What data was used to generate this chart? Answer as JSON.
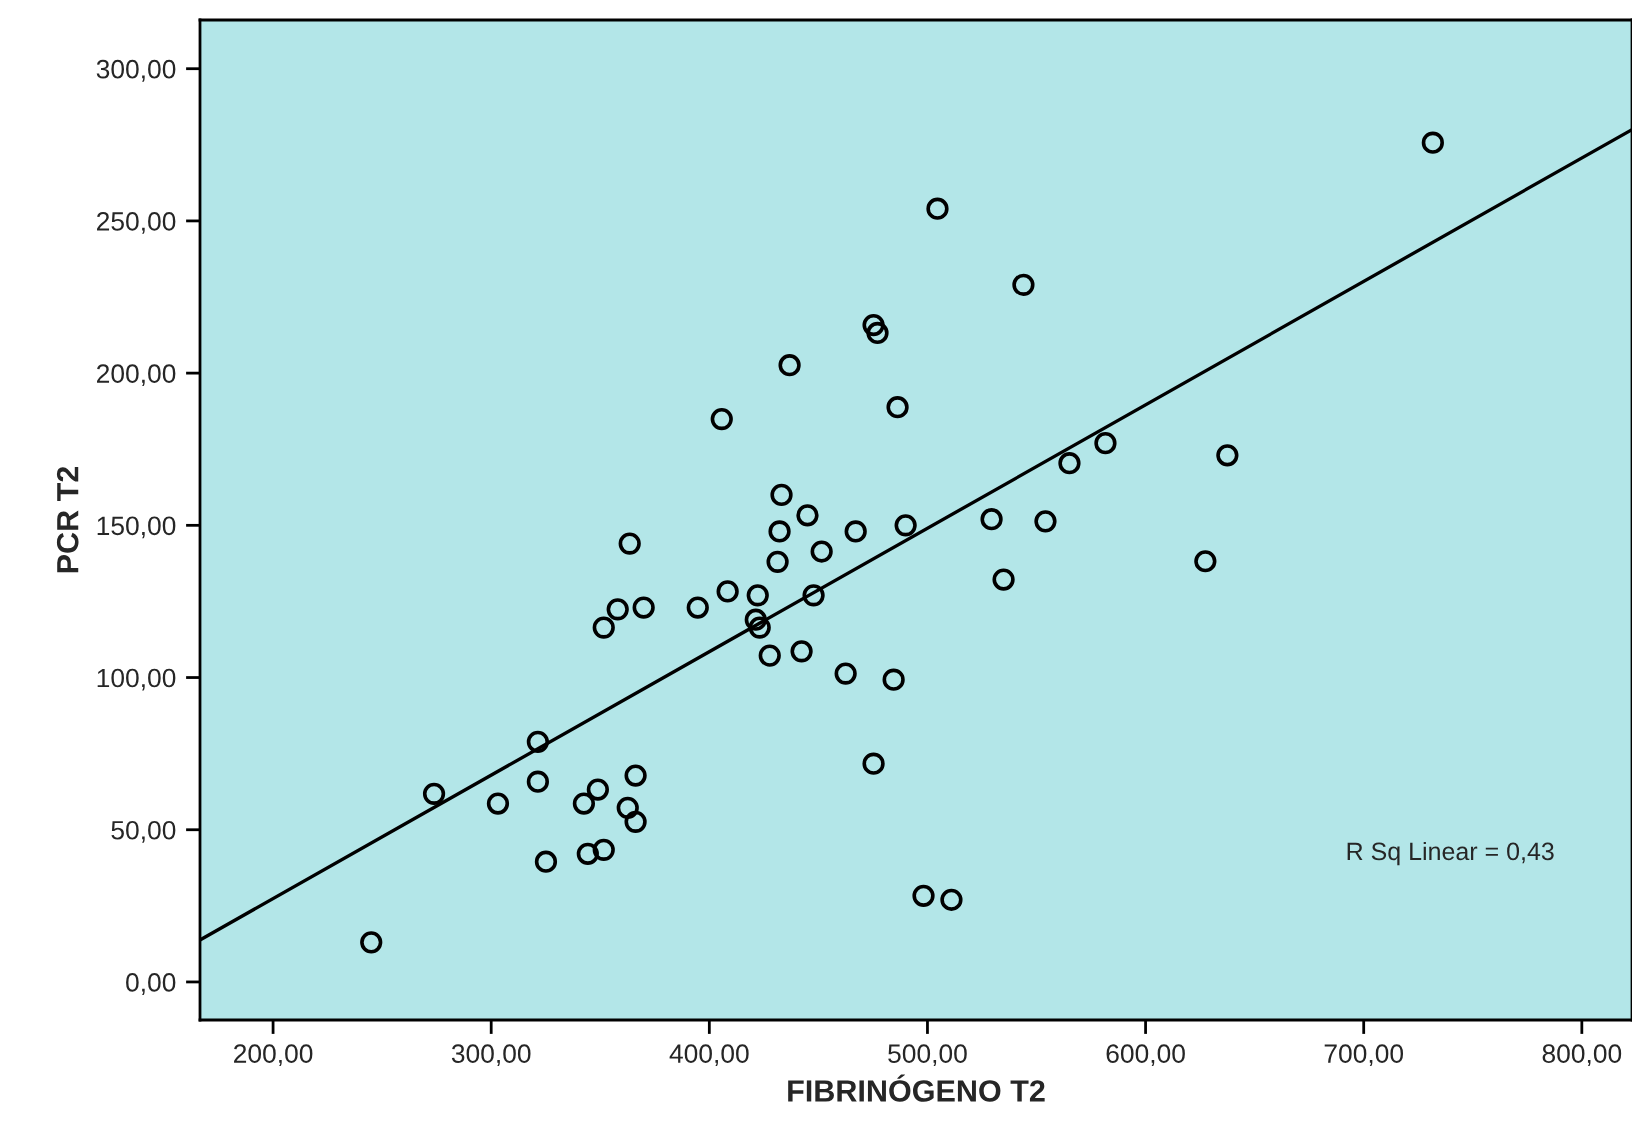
{
  "chart_data": {
    "type": "scatter",
    "xlabel": "FIBRINÓGENO T2",
    "ylabel": "PCR T2",
    "xlim": [
      166.5,
      823
    ],
    "ylim": [
      -12.5,
      316
    ],
    "xticks": [
      {
        "value": 200,
        "label": "200,00"
      },
      {
        "value": 300,
        "label": "300,00"
      },
      {
        "value": 400,
        "label": "400,00"
      },
      {
        "value": 500,
        "label": "500,00"
      },
      {
        "value": 600,
        "label": "600,00"
      },
      {
        "value": 700,
        "label": "700,00"
      },
      {
        "value": 800,
        "label": "800,00"
      }
    ],
    "yticks": [
      {
        "value": 0,
        "label": "0,00"
      },
      {
        "value": 50,
        "label": "50,00"
      },
      {
        "value": 100,
        "label": "100,00"
      },
      {
        "value": 150,
        "label": "150,00"
      },
      {
        "value": 200,
        "label": "200,00"
      },
      {
        "value": 250,
        "label": "250,00"
      },
      {
        "value": 300,
        "label": "300,00"
      }
    ],
    "grid": false,
    "legend": false,
    "marker": "circle",
    "series": [
      {
        "color": "#000000",
        "x": [
          245,
          273.8,
          303.1,
          321.4,
          321.4,
          325.1,
          342.5,
          348.9,
          344.3,
          351.6,
          362.6,
          366.2,
          366.2,
          351.6,
          358.0,
          369.9,
          363.5,
          394.7,
          408.4,
          422.2,
          421.3,
          423.1,
          427.7,
          442.3,
          431.3,
          432.2,
          433.1,
          445.0,
          451.5,
          447.8,
          467.1,
          462.5,
          484.5,
          475.3,
          490.0,
          498.2,
          511.0,
          529.4,
          534.9,
          504.6,
          544.0,
          475.3,
          477.1,
          486.3,
          565.1,
          581.6,
          637.5,
          554.1,
          627.4,
          436.8,
          405.7,
          731.7
        ],
        "values": [
          13,
          61.8,
          58.6,
          78.9,
          65.8,
          39.5,
          58.6,
          63.2,
          42.1,
          43.4,
          57.2,
          52.6,
          67.8,
          116.4,
          122.4,
          123,
          144,
          123,
          128.3,
          127,
          119,
          116.4,
          107.2,
          108.6,
          138,
          148,
          160,
          153.3,
          141.4,
          127,
          148,
          101.3,
          99.3,
          71.7,
          150,
          28.3,
          27,
          152,
          132.2,
          254,
          229,
          215.8,
          213.2,
          188.8,
          170.4,
          177,
          173,
          151.3,
          138.2,
          202.6,
          184.9,
          275.7
        ]
      },
      {
        "type": "line",
        "color": "#000000",
        "x": [
          166.5,
          823
        ],
        "values": [
          13.8,
          280
        ],
        "line_style": "solid",
        "marker": "none"
      }
    ],
    "annotations": [
      "R Sq Linear = 0,43"
    ]
  }
}
